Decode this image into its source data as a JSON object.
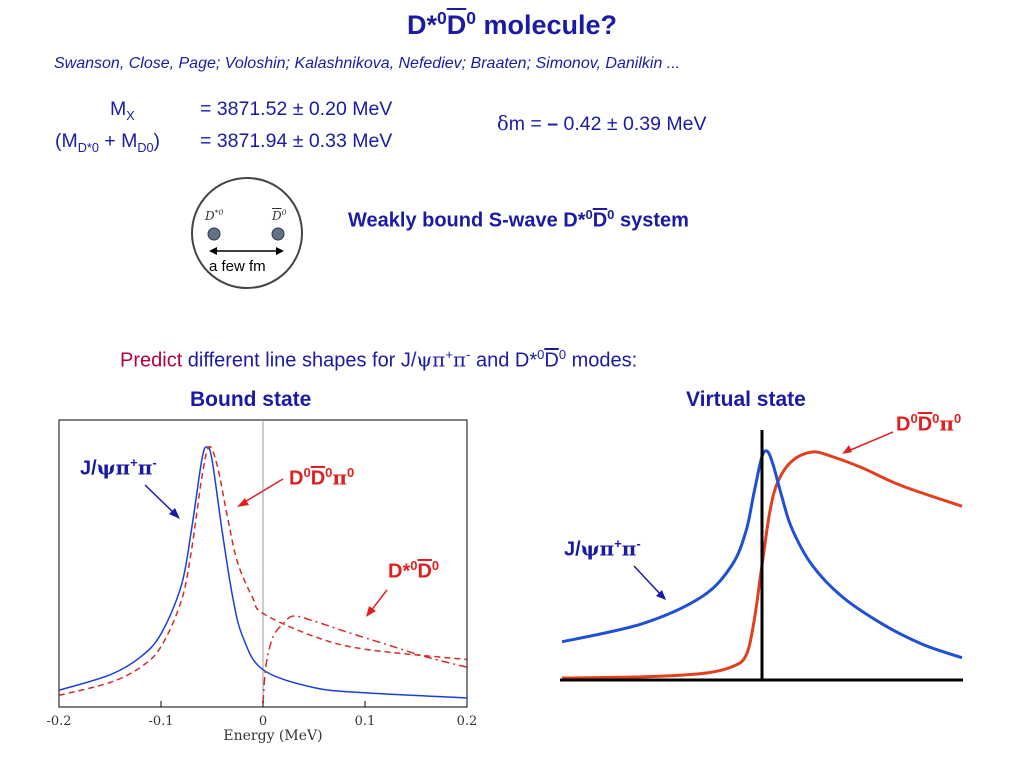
{
  "title": {
    "part1": "D*",
    "sup1": "0",
    "dbar": "D",
    "sup2": "0",
    "rest": " molecule?"
  },
  "authors": "Swanson, Close, Page; Voloshin; Kalashnikova, Nefediev; Braaten; Simonov, Danilkin ...",
  "masses": {
    "mx_label": "M",
    "mx_sub": "X",
    "mx_value": "= 3871.52 ± 0.20 MeV",
    "msum_open": "(M",
    "msum_sub1": "D*0",
    "msum_plus": " + M",
    "msum_sub2": "D0",
    "msum_close": ")",
    "msum_value": "= 3871.94 ± 0.33 MeV",
    "dm_delta": "δ",
    "dm_m": "m",
    "dm_eq": " = ",
    "dm_minus": "–",
    "dm_value": " 0.42 ± 0.39 MeV"
  },
  "diagram": {
    "label_dstar": "D",
    "label_dstar_sup": "*0",
    "label_dbar": "D",
    "label_dbar_sup": "0",
    "distance": "a few fm"
  },
  "weakly_bound": {
    "text1": "Weakly bound S-wave D*",
    "sup1": "0",
    "dbar": "D",
    "sup2": "0",
    "text2": " system"
  },
  "predict": {
    "word": "Predict",
    "text1": " different line shapes for J/",
    "psi": "ψ",
    "pi": "π",
    "plus": "+",
    "minus": "-",
    "text2": " and D*",
    "sup0": "0",
    "dbar": "D",
    "sup0b": "0",
    "text3": " modes:"
  },
  "sections": {
    "bound": "Bound state",
    "virtual": "Virtual state"
  },
  "bound_plot": {
    "xlabel": "Energy (MeV)",
    "ticks": [
      "-0.2",
      "-0.1",
      "0",
      "0.1",
      "0.2"
    ],
    "label_jpsi": {
      "J": "J/",
      "psi": "ψ",
      "pi": "π",
      "plus": "+",
      "minus": "-"
    },
    "label_ddpi": {
      "D": "D",
      "s1": "0",
      "Dbar": "D",
      "s2": "0",
      "pi": "π",
      "s3": "0"
    },
    "label_dd": {
      "D": "D*",
      "s1": "0",
      "Dbar": "D",
      "s2": "0"
    }
  },
  "virtual_plot": {
    "label_ddpi": {
      "D": "D",
      "s1": "0",
      "Dbar": "D",
      "s2": "0",
      "pi": "π",
      "s3": "0"
    },
    "label_jpsi": {
      "J": "J/",
      "psi": "ψ",
      "pi": "π",
      "plus": "+",
      "minus": "-"
    }
  },
  "chart_data": [
    {
      "type": "line",
      "title": "Bound state",
      "xlabel": "Energy (MeV)",
      "ylabel": "",
      "xlim": [
        -0.2,
        0.2
      ],
      "x_ticks": [
        -0.2,
        -0.1,
        0,
        0.1,
        0.2
      ],
      "series": [
        {
          "name": "J/ψπ⁺π⁻",
          "style": "solid",
          "color": "#1a3fd6",
          "x": [
            -0.2,
            -0.15,
            -0.12,
            -0.1,
            -0.08,
            -0.07,
            -0.06,
            -0.055,
            -0.05,
            -0.04,
            -0.03,
            -0.02,
            0,
            0.05,
            0.1,
            0.2
          ],
          "y": [
            0.05,
            0.11,
            0.18,
            0.27,
            0.46,
            0.68,
            0.95,
            1.0,
            0.95,
            0.67,
            0.42,
            0.26,
            0.13,
            0.06,
            0.04,
            0.02
          ]
        },
        {
          "name": "D⁰D̅⁰π⁰",
          "style": "dashed",
          "color": "#d42a2a",
          "x": [
            -0.2,
            -0.15,
            -0.12,
            -0.1,
            -0.08,
            -0.07,
            -0.06,
            -0.053,
            -0.045,
            -0.035,
            -0.025,
            -0.01,
            0,
            0.05,
            0.1,
            0.2
          ],
          "y": [
            0.03,
            0.08,
            0.14,
            0.22,
            0.4,
            0.6,
            0.88,
            1.0,
            0.93,
            0.73,
            0.55,
            0.41,
            0.35,
            0.26,
            0.21,
            0.17
          ]
        },
        {
          "name": "D*⁰D̅⁰",
          "style": "dashdot",
          "color": "#d42a2a",
          "x": [
            0,
            0.003,
            0.01,
            0.02,
            0.03,
            0.05,
            0.08,
            0.12,
            0.16,
            0.2
          ],
          "y": [
            0,
            0.15,
            0.26,
            0.31,
            0.34,
            0.32,
            0.28,
            0.23,
            0.18,
            0.14
          ]
        }
      ]
    },
    {
      "type": "line",
      "title": "Virtual state",
      "xlabel": "",
      "ylabel": "",
      "series": [
        {
          "name": "D⁰D̅⁰π⁰",
          "style": "solid",
          "color": "#e0401f",
          "x": [
            -1.0,
            -0.6,
            -0.3,
            -0.15,
            -0.08,
            -0.04,
            0,
            0.04,
            0.08,
            0.15,
            0.25,
            0.35,
            0.5,
            0.7,
            1.0
          ],
          "y": [
            0.0,
            0.005,
            0.02,
            0.05,
            0.1,
            0.25,
            0.5,
            0.74,
            0.87,
            0.96,
            1.0,
            0.98,
            0.93,
            0.85,
            0.76
          ]
        },
        {
          "name": "J/ψπ⁺π⁻",
          "style": "solid",
          "color": "#1f4fd6",
          "x": [
            -1.0,
            -0.6,
            -0.3,
            -0.15,
            -0.08,
            -0.04,
            0,
            0.03,
            0.06,
            0.1,
            0.15,
            0.25,
            0.4,
            0.6,
            0.8,
            1.0
          ],
          "y": [
            0.16,
            0.24,
            0.36,
            0.5,
            0.65,
            0.82,
            0.98,
            1.0,
            0.93,
            0.8,
            0.66,
            0.5,
            0.36,
            0.24,
            0.15,
            0.09
          ]
        }
      ]
    }
  ]
}
